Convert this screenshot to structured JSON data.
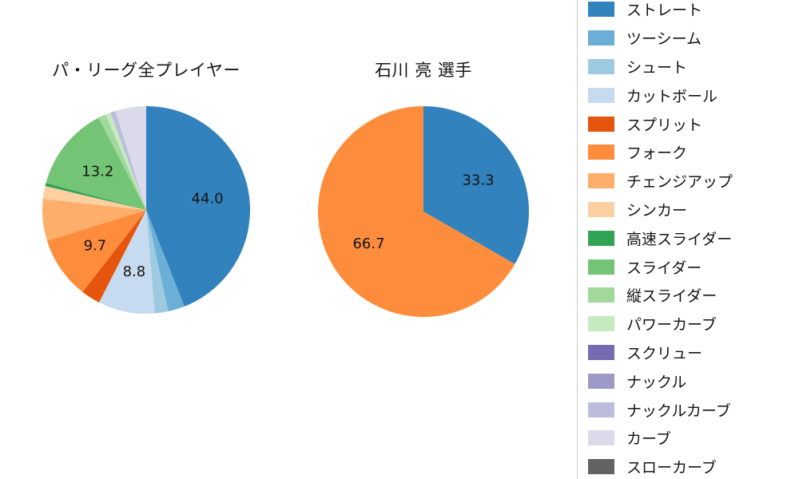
{
  "chart_data": [
    {
      "type": "pie",
      "title": "パ・リーグ全プレイヤー",
      "start_angle": "top",
      "direction": "clockwise",
      "label_min_value": 8,
      "labels": [
        "ストレート",
        "ツーシーム",
        "シュート",
        "カットボール",
        "スプリット",
        "フォーク",
        "チェンジアップ",
        "シンカー",
        "高速スライダー",
        "スライダー",
        "縦スライダー",
        "パワーカーブ",
        "スクリュー",
        "ナックル",
        "ナックルカーブ",
        "カーブ",
        "スローカーブ"
      ],
      "values": [
        44.0,
        2.6,
        2.1,
        8.8,
        3.0,
        9.7,
        6.5,
        2.0,
        0.5,
        13.2,
        1.2,
        0.8,
        0,
        0,
        0.8,
        4.8,
        0
      ],
      "shown_data_labels": [
        "44.0",
        "8.8",
        "9.7",
        "13.2"
      ]
    },
    {
      "type": "pie",
      "title": "石川 亮 選手",
      "start_angle": "top",
      "direction": "clockwise",
      "label_min_value": 8,
      "labels": [
        "ストレート",
        "フォーク"
      ],
      "values": [
        33.3,
        66.7
      ],
      "shown_data_labels": [
        "33.3",
        "66.7"
      ]
    }
  ],
  "legend": {
    "position": "right",
    "items": [
      {
        "label": "ストレート",
        "color": "#3182bd"
      },
      {
        "label": "ツーシーム",
        "color": "#6baed6"
      },
      {
        "label": "シュート",
        "color": "#9ecae1"
      },
      {
        "label": "カットボール",
        "color": "#c6dbef"
      },
      {
        "label": "スプリット",
        "color": "#e6550d"
      },
      {
        "label": "フォーク",
        "color": "#fd8d3c"
      },
      {
        "label": "チェンジアップ",
        "color": "#fdae6b"
      },
      {
        "label": "シンカー",
        "color": "#fdd0a2"
      },
      {
        "label": "高速スライダー",
        "color": "#31a354"
      },
      {
        "label": "スライダー",
        "color": "#74c476"
      },
      {
        "label": "縦スライダー",
        "color": "#a1d99b"
      },
      {
        "label": "パワーカーブ",
        "color": "#c7e9c0"
      },
      {
        "label": "スクリュー",
        "color": "#756bb1"
      },
      {
        "label": "ナックル",
        "color": "#9e9ac8"
      },
      {
        "label": "ナックルカーブ",
        "color": "#bcbddc"
      },
      {
        "label": "カーブ",
        "color": "#dadaeb"
      },
      {
        "label": "スローカーブ",
        "color": "#636363"
      }
    ]
  }
}
